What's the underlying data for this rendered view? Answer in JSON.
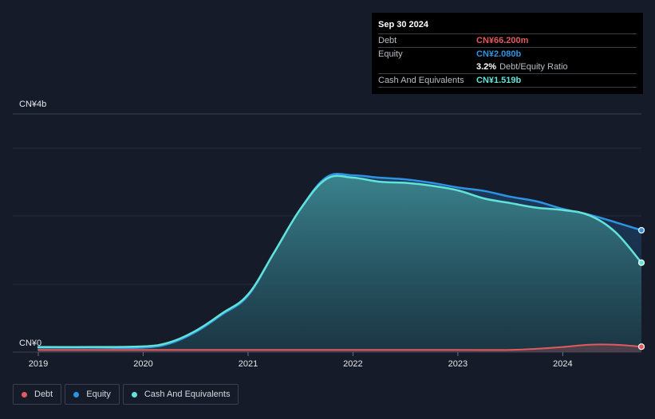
{
  "tooltip": {
    "date": "Sep 30 2024",
    "debt_label": "Debt",
    "debt_value": "CN¥66.200m",
    "equity_label": "Equity",
    "equity_value": "CN¥2.080b",
    "ratio_value": "3.2%",
    "ratio_label": "Debt/Equity Ratio",
    "cash_label": "Cash And Equivalents",
    "cash_value": "CN¥1.519b"
  },
  "colors": {
    "debt": "#e05a5f",
    "equity": "#2e93e2",
    "cash": "#62e3d8"
  },
  "chart_data": {
    "type": "area",
    "title": "",
    "xlabel": "",
    "ylabel": "",
    "y_top_label": "CN¥4b",
    "y_bottom_label": "CN¥0",
    "ylim": [
      0,
      3.5
    ],
    "xlim": [
      2019,
      2024.75
    ],
    "x_ticks": [
      "2019",
      "2020",
      "2021",
      "2022",
      "2023",
      "2024"
    ],
    "grid": true,
    "legend_position": "bottom-left",
    "units": "CN¥ billions",
    "series": [
      {
        "name": "Debt",
        "color": "#e05a5f",
        "x": [
          2019,
          2020,
          2021,
          2022,
          2023,
          2023.5,
          2023.75,
          2024,
          2024.25,
          2024.5,
          2024.75
        ],
        "values": [
          0.01,
          0.01,
          0.01,
          0.01,
          0.01,
          0.01,
          0.03,
          0.06,
          0.1,
          0.1,
          0.066
        ]
      },
      {
        "name": "Equity",
        "color": "#2e93e2",
        "x": [
          2019,
          2019.5,
          2020,
          2020.25,
          2020.5,
          2020.75,
          2021,
          2021.25,
          2021.5,
          2021.75,
          2022,
          2022.25,
          2022.5,
          2022.75,
          2023,
          2023.25,
          2023.5,
          2023.75,
          2024,
          2024.25,
          2024.5,
          2024.75
        ],
        "values": [
          0.05,
          0.05,
          0.05,
          0.12,
          0.32,
          0.62,
          0.95,
          1.7,
          2.45,
          3.0,
          3.03,
          2.99,
          2.96,
          2.9,
          2.82,
          2.76,
          2.66,
          2.58,
          2.45,
          2.35,
          2.22,
          2.08
        ]
      },
      {
        "name": "Cash And Equivalents",
        "color": "#62e3d8",
        "x": [
          2019,
          2019.5,
          2020,
          2020.25,
          2020.5,
          2020.75,
          2021,
          2021.25,
          2021.5,
          2021.75,
          2022,
          2022.25,
          2022.5,
          2022.75,
          2023,
          2023.25,
          2023.5,
          2023.75,
          2024,
          2024.25,
          2024.5,
          2024.75
        ],
        "values": [
          0.06,
          0.06,
          0.07,
          0.14,
          0.34,
          0.64,
          0.97,
          1.7,
          2.45,
          2.97,
          2.99,
          2.92,
          2.9,
          2.85,
          2.77,
          2.63,
          2.55,
          2.47,
          2.43,
          2.34,
          2.05,
          1.519
        ]
      }
    ]
  },
  "legend": {
    "debt": "Debt",
    "equity": "Equity",
    "cash": "Cash And Equivalents"
  }
}
